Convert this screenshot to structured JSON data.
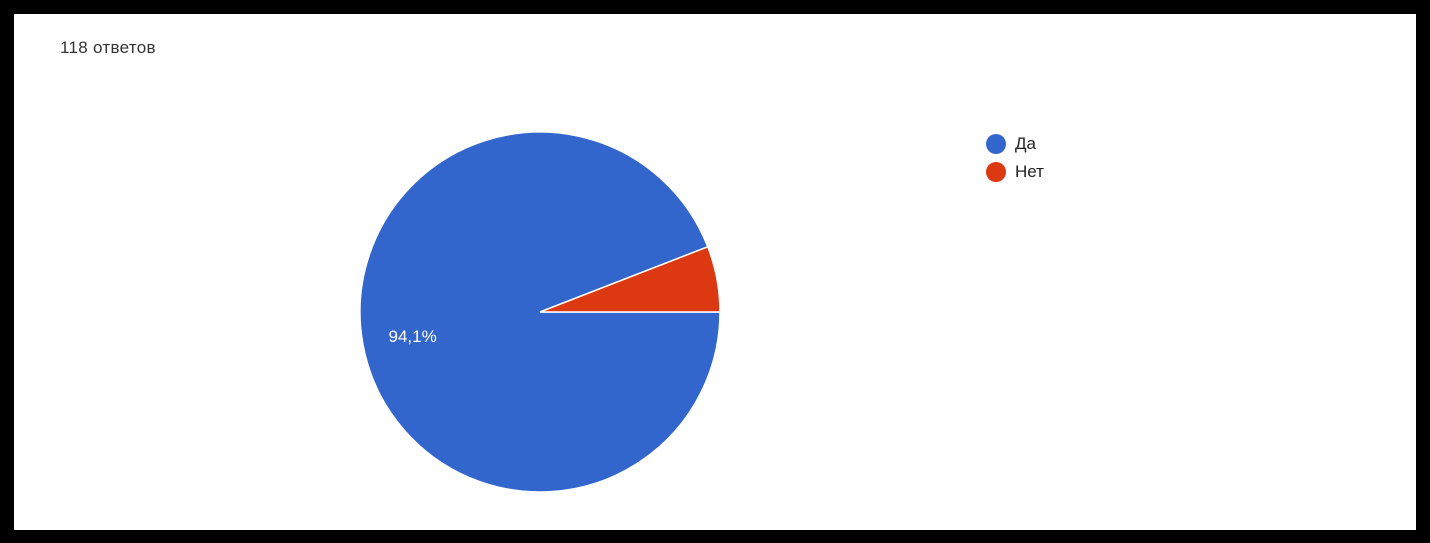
{
  "response_count": "118 ответов",
  "chart_data": {
    "type": "pie",
    "categories": [
      "Да",
      "Нет"
    ],
    "values": [
      94.1,
      5.9
    ],
    "colors": [
      "#3366cc",
      "#dc3912"
    ],
    "data_labels": [
      "94,1%",
      ""
    ],
    "legend_position": "right"
  }
}
